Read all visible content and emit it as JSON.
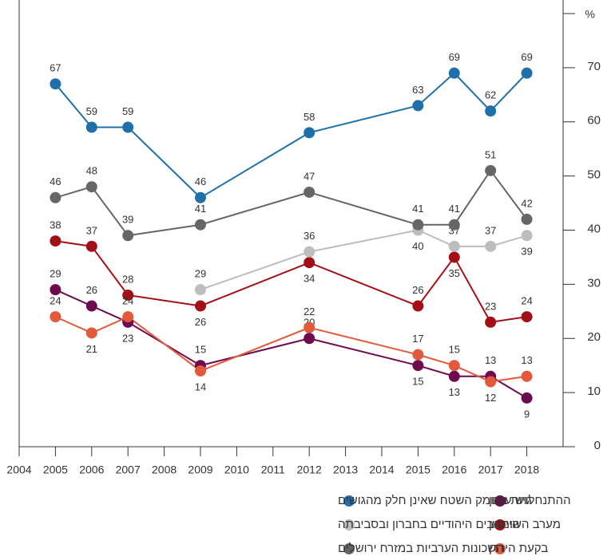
{
  "chart_data": {
    "type": "line",
    "x": [
      2005,
      2006,
      2007,
      2009,
      2012,
      2015,
      2016,
      2017,
      2018
    ],
    "series": [
      {
        "name": "גוש עציון",
        "color": "#6e0a50",
        "values": [
          29,
          26,
          23,
          15,
          20,
          15,
          13,
          13,
          9
        ]
      },
      {
        "name": "מערב השומרון",
        "color": "#a30f16",
        "values": [
          38,
          37,
          28,
          26,
          34,
          26,
          35,
          23,
          24
        ]
      },
      {
        "name": "בקעת הירדן",
        "color": "#e2593b",
        "values": [
          24,
          21,
          24,
          14,
          22,
          17,
          15,
          12,
          13
        ]
      },
      {
        "name": "ההתנחלויות בעומק השטח שאינן חלק מהגושים",
        "color": "#1f70a9",
        "values": [
          67,
          59,
          59,
          46,
          58,
          63,
          69,
          62,
          69
        ]
      },
      {
        "name": "היישובים היהודיים בחברון ובסביבתה",
        "color": "#bdbdbd",
        "values": [
          null,
          null,
          null,
          29,
          36,
          40,
          37,
          37,
          39
        ]
      },
      {
        "name": "השכונות הערביות במזרח ירושלים",
        "color": "#666666",
        "values": [
          46,
          48,
          39,
          41,
          47,
          41,
          41,
          51,
          42
        ]
      }
    ],
    "xlim": [
      2004,
      2019
    ],
    "xticks": [
      2004,
      2005,
      2006,
      2007,
      2008,
      2009,
      2010,
      2011,
      2012,
      2013,
      2014,
      2015,
      2016,
      2017,
      2018
    ],
    "ylim": [
      0,
      80
    ],
    "yticks": [
      0,
      10,
      20,
      30,
      40,
      50,
      60,
      70,
      {
        "value": 80,
        "label": "%"
      }
    ],
    "grid": false
  }
}
